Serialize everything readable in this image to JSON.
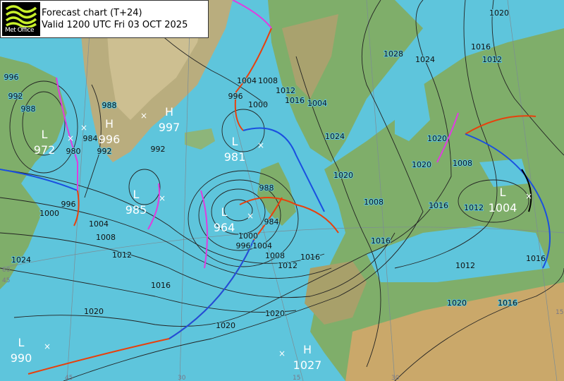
{
  "header": {
    "title": "Forecast chart (T+24)",
    "valid": "Valid 1200 UTC Fri 03 OCT 2025",
    "logo_text": "Met Office"
  },
  "colors": {
    "sea": "#5ec5dc",
    "land_low": "#7fb06a",
    "land_high": "#c9b98a",
    "isobar": "#222222",
    "warm_front": "#e8400c",
    "cold_front": "#1a4fe0",
    "occluded_front": "#e03ce0",
    "trough": "#000000",
    "centre_label": "#ffffff"
  },
  "centres": [
    {
      "type": "L",
      "value": "972"
    },
    {
      "type": "H",
      "value": "996"
    },
    {
      "type": "H",
      "value": "997"
    },
    {
      "type": "L",
      "value": "981"
    },
    {
      "type": "L",
      "value": "985"
    },
    {
      "type": "L",
      "value": "964"
    },
    {
      "type": "L",
      "value": "1004"
    },
    {
      "type": "L",
      "value": "990"
    },
    {
      "type": "H",
      "value": "1027"
    }
  ],
  "isobar_labels": [
    "996",
    "992",
    "988",
    "984",
    "988",
    "992",
    "980",
    "996",
    "1000",
    "1004",
    "1008",
    "1012",
    "1016",
    "1020",
    "1024",
    "1020",
    "992",
    "996",
    "1000",
    "1004",
    "1008",
    "1012",
    "1016",
    "988",
    "984",
    "1004",
    "1000",
    "996",
    "1008",
    "1012",
    "1016",
    "1028",
    "1024",
    "1020",
    "1016",
    "1012",
    "1024",
    "1020",
    "1016",
    "1020",
    "1012",
    "1008",
    "1016",
    "1020",
    "1020",
    "1016",
    "1004",
    "1008",
    "1012",
    "1016",
    "1020"
  ],
  "grid_labels": [
    "60",
    "45",
    "45",
    "30",
    "15",
    "30",
    "15"
  ]
}
